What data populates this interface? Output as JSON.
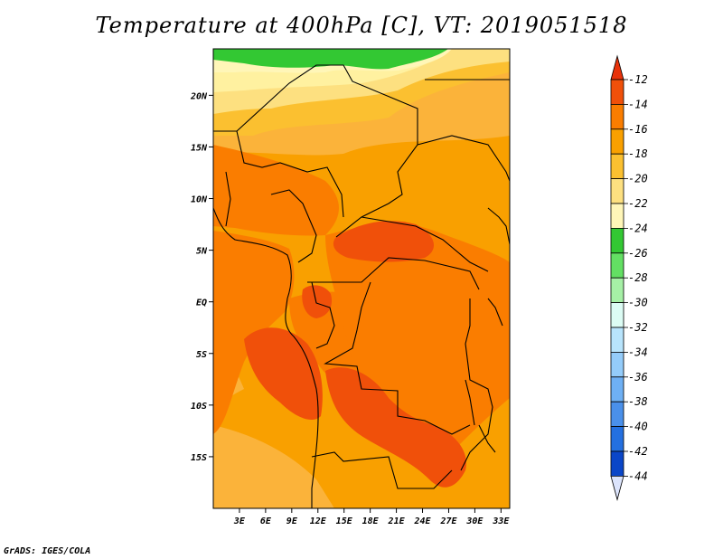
{
  "title": "Temperature at 400hPa [C], VT: 2019051518",
  "footer": "GrADS: IGES/COLA",
  "map": {
    "lon_range": [
      0,
      34
    ],
    "lat_range": [
      -20,
      24.5
    ],
    "x_ticks": [
      "3E",
      "6E",
      "9E",
      "12E",
      "15E",
      "18E",
      "21E",
      "24E",
      "27E",
      "30E",
      "33E"
    ],
    "y_ticks": [
      "20N",
      "15N",
      "10N",
      "5N",
      "EQ",
      "5S",
      "10S",
      "15S"
    ]
  },
  "colorbar": {
    "labels": [
      "-12",
      "-14",
      "-16",
      "-18",
      "-20",
      "-22",
      "-24",
      "-26",
      "-28",
      "-30",
      "-32",
      "-34",
      "-36",
      "-38",
      "-40",
      "-42",
      "-44"
    ],
    "colors": [
      "#f0500a",
      "#fa7d00",
      "#f9a000",
      "#fbc030",
      "#fde080",
      "#fff6b8",
      "#33c833",
      "#63df63",
      "#a6f0a6",
      "#dcfcf4",
      "#b8e4fc",
      "#94ccfa",
      "#6eb0f4",
      "#4a90ea",
      "#2470e0",
      "#0a46c8",
      "#0a1a7a"
    ],
    "top_arrow_color": "#e8320a",
    "bottom_arrow_color": "#dce4fc"
  }
}
